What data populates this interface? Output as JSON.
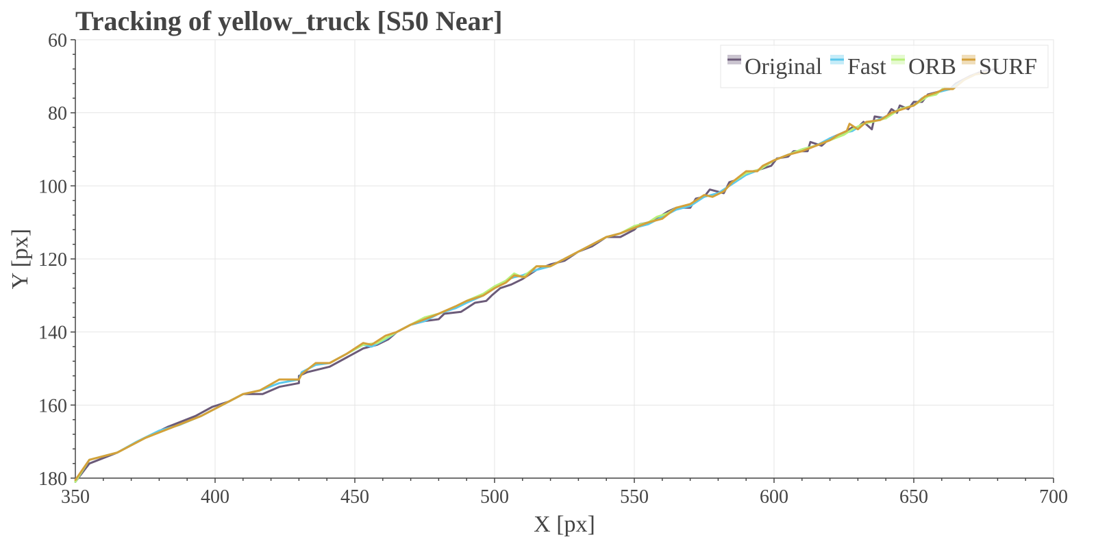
{
  "chart_data": {
    "type": "line",
    "title": "Tracking of yellow_truck [S50 Near]",
    "xlabel": "X [px]",
    "ylabel": "Y [px]",
    "xlim": [
      350,
      700
    ],
    "ylim": [
      180,
      60
    ],
    "y_inverted": true,
    "xticks": [
      350,
      400,
      450,
      500,
      550,
      600,
      650,
      700
    ],
    "yticks": [
      60,
      80,
      100,
      120,
      140,
      160,
      180
    ],
    "grid": true,
    "legend_position": "top-right",
    "series": [
      {
        "name": "Original",
        "color": "#6b5a78",
        "points": [
          [
            350,
            181
          ],
          [
            355,
            176
          ],
          [
            365,
            173
          ],
          [
            375,
            169
          ],
          [
            383,
            166
          ],
          [
            393,
            163
          ],
          [
            399,
            160.5
          ],
          [
            405,
            159
          ],
          [
            410,
            157
          ],
          [
            417,
            157
          ],
          [
            423,
            155
          ],
          [
            430,
            154
          ],
          [
            430,
            152
          ],
          [
            433,
            151
          ],
          [
            441,
            149.5
          ],
          [
            447,
            147
          ],
          [
            453,
            144.5
          ],
          [
            458,
            143.5
          ],
          [
            462,
            142
          ],
          [
            465,
            140
          ],
          [
            470,
            138
          ],
          [
            475,
            137
          ],
          [
            480,
            136.5
          ],
          [
            482,
            135
          ],
          [
            488,
            134.5
          ],
          [
            490,
            133.5
          ],
          [
            493,
            132
          ],
          [
            497,
            131.5
          ],
          [
            499,
            130
          ],
          [
            502,
            128
          ],
          [
            506,
            127
          ],
          [
            510,
            125.5
          ],
          [
            515,
            123
          ],
          [
            520,
            121.5
          ],
          [
            525,
            120.5
          ],
          [
            530,
            118
          ],
          [
            535,
            116.5
          ],
          [
            537,
            115.5
          ],
          [
            540,
            114
          ],
          [
            545,
            114
          ],
          [
            550,
            112
          ],
          [
            552,
            110.5
          ],
          [
            555,
            110
          ],
          [
            558,
            109
          ],
          [
            562,
            107
          ],
          [
            565,
            106
          ],
          [
            570,
            106
          ],
          [
            572,
            103.5
          ],
          [
            575,
            103
          ],
          [
            577,
            101
          ],
          [
            582,
            102
          ],
          [
            584,
            99
          ],
          [
            588,
            98
          ],
          [
            590,
            96.5
          ],
          [
            595,
            95.5
          ],
          [
            599,
            94.5
          ],
          [
            601,
            92.5
          ],
          [
            605,
            92
          ],
          [
            607,
            90.5
          ],
          [
            612,
            90.5
          ],
          [
            613,
            88
          ],
          [
            617,
            89
          ],
          [
            620,
            87
          ],
          [
            623,
            86
          ],
          [
            626,
            85
          ],
          [
            628,
            84
          ],
          [
            630,
            84
          ],
          [
            632,
            82.5
          ],
          [
            635,
            84.5
          ],
          [
            636,
            81
          ],
          [
            640,
            81.5
          ],
          [
            642,
            79
          ],
          [
            644,
            80
          ],
          [
            645,
            78
          ],
          [
            648,
            79
          ],
          [
            650,
            77
          ],
          [
            653,
            77
          ],
          [
            655,
            75
          ],
          [
            660,
            74
          ],
          [
            663,
            73.5
          ],
          [
            665,
            72
          ],
          [
            670,
            70
          ],
          [
            675,
            68.5
          ],
          [
            680,
            68
          ]
        ]
      },
      {
        "name": "Fast",
        "color": "#5bc8ec",
        "points": [
          [
            350,
            181
          ],
          [
            355,
            175
          ],
          [
            365,
            173
          ],
          [
            372,
            170
          ],
          [
            380,
            167
          ],
          [
            387,
            165.5
          ],
          [
            395,
            163
          ],
          [
            405,
            159
          ],
          [
            410,
            157
          ],
          [
            416,
            156
          ],
          [
            423,
            154
          ],
          [
            430,
            153
          ],
          [
            431,
            151
          ],
          [
            436,
            149
          ],
          [
            441,
            148.5
          ],
          [
            447,
            146
          ],
          [
            453,
            143.5
          ],
          [
            456,
            144
          ],
          [
            461,
            142
          ],
          [
            465,
            140
          ],
          [
            470,
            138
          ],
          [
            475,
            137
          ],
          [
            480,
            135
          ],
          [
            486,
            133.5
          ],
          [
            490,
            132
          ],
          [
            496,
            130
          ],
          [
            500,
            128
          ],
          [
            505,
            125.5
          ],
          [
            507,
            125
          ],
          [
            510,
            124.5
          ],
          [
            515,
            123
          ],
          [
            520,
            122
          ],
          [
            525,
            120
          ],
          [
            530,
            118
          ],
          [
            535,
            116
          ],
          [
            540,
            114
          ],
          [
            545,
            113
          ],
          [
            550,
            111.5
          ],
          [
            555,
            110.5
          ],
          [
            560,
            108.5
          ],
          [
            565,
            106.5
          ],
          [
            570,
            105.5
          ],
          [
            575,
            103
          ],
          [
            580,
            102
          ],
          [
            585,
            99.5
          ],
          [
            590,
            97
          ],
          [
            595,
            95.5
          ],
          [
            600,
            93
          ],
          [
            605,
            91.5
          ],
          [
            610,
            90
          ],
          [
            615,
            89
          ],
          [
            620,
            87
          ],
          [
            625,
            85.5
          ],
          [
            628,
            85
          ],
          [
            632,
            83
          ],
          [
            637,
            82
          ],
          [
            640,
            81
          ],
          [
            645,
            79
          ],
          [
            650,
            78
          ],
          [
            653,
            76
          ],
          [
            658,
            74.5
          ],
          [
            663,
            73.5
          ],
          [
            668,
            71
          ],
          [
            672,
            69.5
          ],
          [
            676,
            69
          ]
        ]
      },
      {
        "name": "ORB",
        "color": "#b8f07a",
        "points": [
          [
            350,
            181
          ],
          [
            355,
            175
          ],
          [
            365,
            173
          ],
          [
            375,
            169
          ],
          [
            385,
            166
          ],
          [
            395,
            163
          ],
          [
            405,
            159
          ],
          [
            410,
            157
          ],
          [
            416,
            156
          ],
          [
            423,
            153
          ],
          [
            430,
            153
          ],
          [
            431,
            151.5
          ],
          [
            436,
            148.5
          ],
          [
            441,
            148.5
          ],
          [
            447,
            146
          ],
          [
            453,
            143.5
          ],
          [
            458,
            143
          ],
          [
            465,
            140
          ],
          [
            470,
            138
          ],
          [
            475,
            136
          ],
          [
            480,
            135
          ],
          [
            486,
            133
          ],
          [
            490,
            131.5
          ],
          [
            496,
            129.5
          ],
          [
            500,
            127.5
          ],
          [
            504,
            126
          ],
          [
            507,
            124
          ],
          [
            510,
            125
          ],
          [
            515,
            122
          ],
          [
            520,
            122
          ],
          [
            525,
            120
          ],
          [
            530,
            118
          ],
          [
            535,
            116
          ],
          [
            540,
            114
          ],
          [
            545,
            113
          ],
          [
            550,
            111
          ],
          [
            555,
            110
          ],
          [
            558,
            108.5
          ],
          [
            562,
            107.5
          ],
          [
            565,
            106
          ],
          [
            570,
            105
          ],
          [
            575,
            102.5
          ],
          [
            578,
            103
          ],
          [
            582,
            101.5
          ],
          [
            585,
            99
          ],
          [
            590,
            96.5
          ],
          [
            595,
            95.5
          ],
          [
            600,
            93
          ],
          [
            605,
            91.5
          ],
          [
            610,
            90
          ],
          [
            615,
            89
          ],
          [
            620,
            87.5
          ],
          [
            625,
            86
          ],
          [
            628,
            84.5
          ],
          [
            632,
            83
          ],
          [
            635,
            82.5
          ],
          [
            640,
            81.5
          ],
          [
            645,
            79
          ],
          [
            650,
            78
          ],
          [
            655,
            75.5
          ],
          [
            658,
            75
          ],
          [
            661,
            73
          ],
          [
            664,
            73.5
          ],
          [
            668,
            71
          ],
          [
            672,
            69.5
          ],
          [
            676,
            69
          ]
        ]
      },
      {
        "name": "SURF",
        "color": "#d4a03a",
        "points": [
          [
            350,
            180.5
          ],
          [
            355,
            175
          ],
          [
            365,
            173
          ],
          [
            375,
            169
          ],
          [
            385,
            166
          ],
          [
            395,
            163
          ],
          [
            405,
            159
          ],
          [
            410,
            157
          ],
          [
            416,
            156
          ],
          [
            423,
            153
          ],
          [
            430,
            153
          ],
          [
            431,
            151.5
          ],
          [
            436,
            148.5
          ],
          [
            441,
            148.5
          ],
          [
            447,
            146
          ],
          [
            453,
            143
          ],
          [
            456,
            143.5
          ],
          [
            461,
            141
          ],
          [
            465,
            140
          ],
          [
            470,
            138
          ],
          [
            475,
            136.5
          ],
          [
            480,
            135
          ],
          [
            486,
            133
          ],
          [
            490,
            131.5
          ],
          [
            496,
            130
          ],
          [
            500,
            128
          ],
          [
            504,
            126.5
          ],
          [
            507,
            124.5
          ],
          [
            511,
            125
          ],
          [
            515,
            122
          ],
          [
            520,
            122
          ],
          [
            525,
            120
          ],
          [
            530,
            118
          ],
          [
            535,
            116
          ],
          [
            540,
            114
          ],
          [
            545,
            113
          ],
          [
            550,
            111.5
          ],
          [
            555,
            110
          ],
          [
            560,
            109
          ],
          [
            565,
            106
          ],
          [
            570,
            105
          ],
          [
            575,
            102.5
          ],
          [
            578,
            103
          ],
          [
            582,
            101.5
          ],
          [
            585,
            99
          ],
          [
            590,
            96
          ],
          [
            594,
            96
          ],
          [
            596,
            94.5
          ],
          [
            600,
            93
          ],
          [
            605,
            91.5
          ],
          [
            610,
            90.5
          ],
          [
            615,
            89
          ],
          [
            620,
            87.5
          ],
          [
            623,
            86
          ],
          [
            626,
            85
          ],
          [
            627,
            83
          ],
          [
            630,
            84.5
          ],
          [
            633,
            82.5
          ],
          [
            638,
            82
          ],
          [
            642,
            80
          ],
          [
            646,
            79
          ],
          [
            650,
            78
          ],
          [
            654,
            75.5
          ],
          [
            658,
            74.5
          ],
          [
            661,
            73.5
          ],
          [
            664,
            73.5
          ],
          [
            668,
            71
          ],
          [
            672,
            69.5
          ],
          [
            676,
            69
          ]
        ]
      }
    ]
  }
}
